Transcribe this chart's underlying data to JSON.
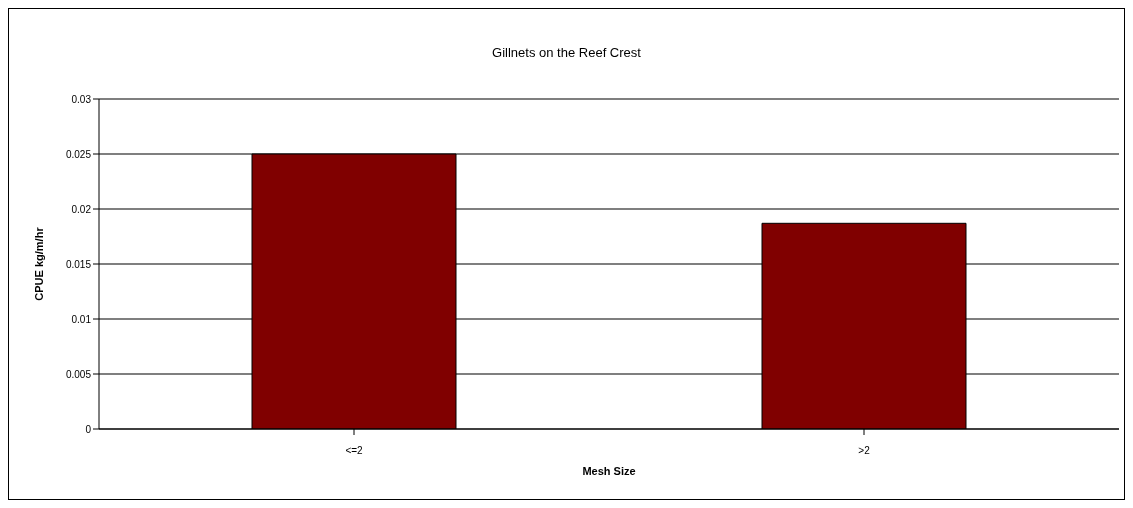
{
  "chart_data": {
    "type": "bar",
    "title": "Gillnets on the Reef Crest",
    "xlabel": "Mesh Size",
    "ylabel": "CPUE kg/m/hr",
    "categories": [
      "<=2",
      ">2"
    ],
    "values": [
      0.025,
      0.0187
    ],
    "color": "#800000",
    "ylim": [
      0,
      0.03
    ],
    "yticks": [
      0,
      0.005,
      0.01,
      0.015,
      0.02,
      0.025,
      0.03
    ],
    "grid": "y"
  }
}
